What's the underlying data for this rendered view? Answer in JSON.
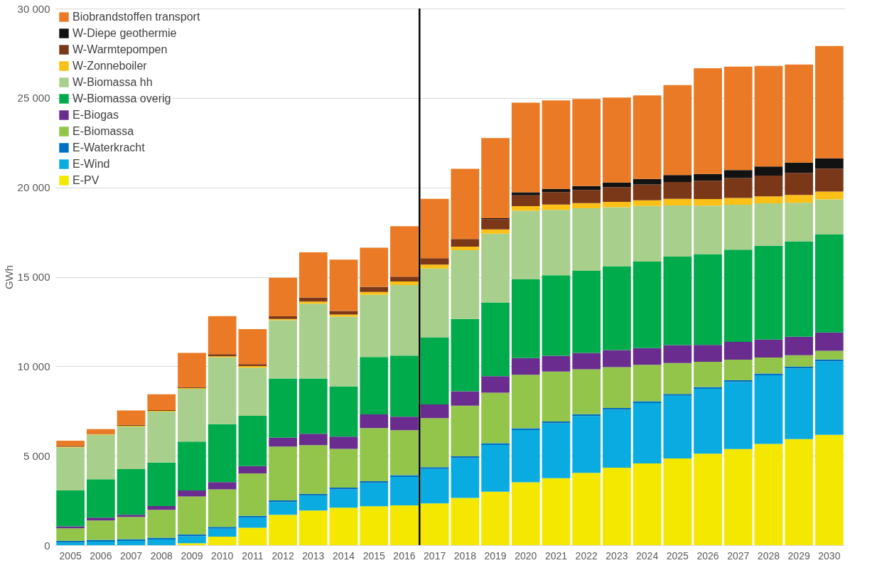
{
  "chart_data": {
    "type": "bar",
    "stacked": true,
    "ylabel": "GWh",
    "categories": [
      "2005",
      "2006",
      "2007",
      "2008",
      "2009",
      "2010",
      "2011",
      "2012",
      "2013",
      "2014",
      "2015",
      "2016",
      "2017",
      "2018",
      "2019",
      "2020",
      "2021",
      "2022",
      "2023",
      "2024",
      "2025",
      "2026",
      "2027",
      "2028",
      "2029",
      "2030"
    ],
    "series": [
      {
        "name": "E-PV",
        "color": "#f5e800",
        "values": [
          0,
          0,
          0,
          0,
          110,
          480,
          970,
          1700,
          1940,
          2100,
          2180,
          2230,
          2330,
          2640,
          2990,
          3520,
          3750,
          4040,
          4330,
          4570,
          4850,
          5120,
          5370,
          5660,
          5930,
          6170
        ]
      },
      {
        "name": "E-Wind",
        "color": "#09abe1",
        "values": [
          150,
          200,
          240,
          320,
          400,
          440,
          570,
          700,
          830,
          1020,
          1300,
          1580,
          1930,
          2230,
          2610,
          2920,
          3060,
          3180,
          3240,
          3380,
          3500,
          3620,
          3750,
          3840,
          3950,
          4110
        ]
      },
      {
        "name": "E-Waterkracht",
        "color": "#0070c0",
        "values": [
          100,
          100,
          100,
          100,
          100,
          100,
          100,
          100,
          100,
          100,
          100,
          100,
          100,
          100,
          100,
          100,
          100,
          100,
          100,
          100,
          100,
          100,
          100,
          100,
          100,
          100
        ]
      },
      {
        "name": "E-Biomassa",
        "color": "#92c54a",
        "values": [
          690,
          1080,
          1240,
          1560,
          2110,
          2100,
          2370,
          3010,
          2720,
          2160,
          2970,
          2520,
          2740,
          2830,
          2820,
          2990,
          2800,
          2510,
          2280,
          2030,
          1730,
          1410,
          1150,
          890,
          640,
          490
        ]
      },
      {
        "name": "E-Biogas",
        "color": "#6a2c8f",
        "values": [
          110,
          160,
          120,
          210,
          340,
          410,
          410,
          500,
          640,
          690,
          760,
          750,
          770,
          800,
          930,
          930,
          880,
          920,
          960,
          940,
          1010,
          950,
          990,
          1000,
          1030,
          1020
        ]
      },
      {
        "name": "W-Biomassa overig",
        "color": "#00ab4b",
        "values": [
          2010,
          2150,
          2550,
          2430,
          2730,
          3230,
          2810,
          3310,
          3090,
          2810,
          3210,
          3420,
          3750,
          4050,
          4120,
          4400,
          4500,
          4590,
          4690,
          4830,
          4940,
          5070,
          5160,
          5250,
          5340,
          5490
        ]
      },
      {
        "name": "W-Biomassa hh",
        "color": "#a9cf8c",
        "values": [
          2400,
          2480,
          2390,
          2850,
          2950,
          3740,
          2690,
          3260,
          4180,
          3890,
          3480,
          3940,
          3850,
          3840,
          3840,
          3840,
          3660,
          3490,
          3290,
          3110,
          2860,
          2710,
          2510,
          2370,
          2150,
          1950
        ]
      },
      {
        "name": "W-Zonneboiler",
        "color": "#fcc016",
        "values": [
          40,
          40,
          40,
          40,
          40,
          60,
          90,
          70,
          120,
          120,
          160,
          200,
          220,
          200,
          240,
          250,
          290,
          290,
          300,
          320,
          370,
          370,
          380,
          390,
          440,
          440
        ]
      },
      {
        "name": "W-Warmtepompen",
        "color": "#7b3819",
        "values": [
          50,
          20,
          50,
          40,
          50,
          120,
          110,
          140,
          230,
          200,
          280,
          270,
          350,
          430,
          580,
          610,
          700,
          740,
          830,
          890,
          940,
          1020,
          1110,
          1160,
          1230,
          1280
        ]
      },
      {
        "name": "W-Diepe geothermie",
        "color": "#121212",
        "values": [
          0,
          0,
          0,
          0,
          0,
          0,
          0,
          0,
          0,
          0,
          0,
          0,
          0,
          0,
          50,
          170,
          180,
          220,
          250,
          300,
          390,
          380,
          450,
          510,
          580,
          580
        ]
      },
      {
        "name": "Biobrandstoffen transport",
        "color": "#ea7a25",
        "values": [
          290,
          260,
          800,
          880,
          1920,
          2120,
          1960,
          2160,
          2520,
          2870,
          2190,
          2820,
          3320,
          3920,
          4480,
          5010,
          4940,
          4860,
          4750,
          4670,
          5030,
          5910,
          5780,
          5620,
          5480,
          6270
        ]
      }
    ],
    "ylim": [
      0,
      30000
    ],
    "yticks": [
      {
        "value": 0,
        "label": "0"
      },
      {
        "value": 5000,
        "label": "5 000"
      },
      {
        "value": 10000,
        "label": "10 000"
      },
      {
        "value": 15000,
        "label": "15 000"
      },
      {
        "value": 20000,
        "label": "20 000"
      },
      {
        "value": 25000,
        "label": "25 000"
      },
      {
        "value": 30000,
        "label": "30 000"
      }
    ],
    "ref_lines": [
      {
        "axis": "x",
        "value": "2017",
        "color": "#000000"
      }
    ],
    "grid": "y",
    "legend": "top left"
  }
}
